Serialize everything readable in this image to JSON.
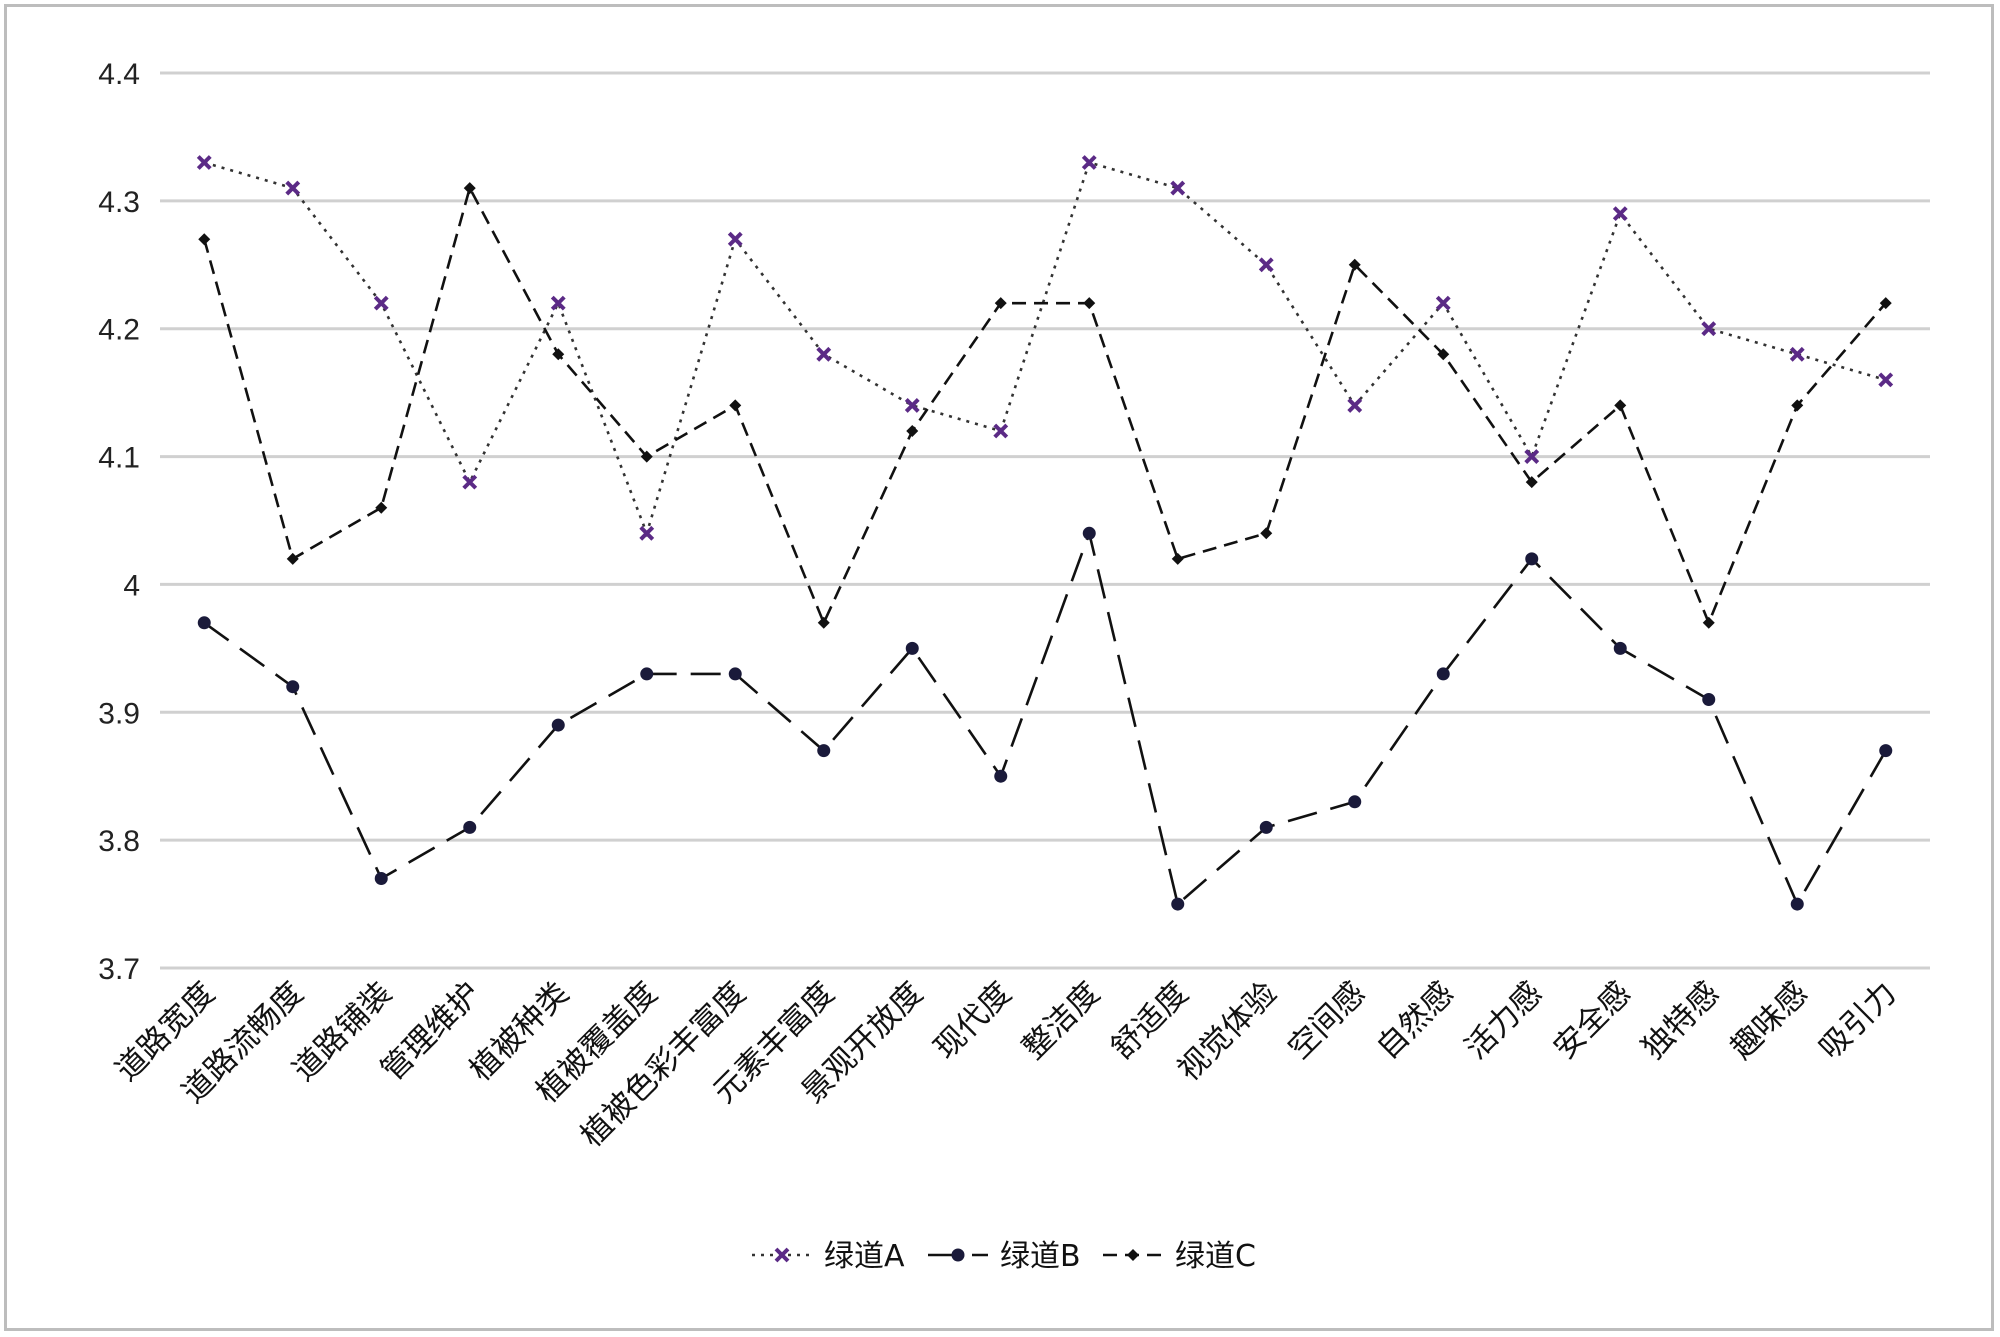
{
  "chart_data": {
    "type": "line",
    "title": "",
    "xlabel": "",
    "ylabel": "",
    "ylim": [
      3.7,
      4.4
    ],
    "yticks": [
      "3.7",
      "3.8",
      "3.9",
      "4",
      "4.1",
      "4.2",
      "4.3",
      "4.4"
    ],
    "grid": true,
    "legend_position": "bottom",
    "categories": [
      "道路宽度",
      "道路流畅度",
      "道路铺装",
      "管理维护",
      "植被种类",
      "植被覆盖度",
      "植被色彩丰富度",
      "元素丰富度",
      "景观开放度",
      "现代度",
      "整洁度",
      "舒适度",
      "视觉体验",
      "空间感",
      "自然感",
      "活力感",
      "安全感",
      "独特感",
      "趣味感",
      "吸引力"
    ],
    "series": [
      {
        "name": "绿道A",
        "line_style": "dotted",
        "marker": "cross",
        "marker_color": "#5b2a86",
        "color": "#333333",
        "values": [
          4.33,
          4.31,
          4.22,
          4.08,
          4.22,
          4.04,
          4.27,
          4.18,
          4.14,
          4.12,
          4.33,
          4.31,
          4.25,
          4.14,
          4.22,
          4.1,
          4.29,
          4.2,
          4.18,
          4.16
        ]
      },
      {
        "name": "绿道B",
        "line_style": "long-dash",
        "marker": "circle",
        "marker_color": "#1a1a3a",
        "color": "#111111",
        "values": [
          3.97,
          3.92,
          3.77,
          3.81,
          3.89,
          3.93,
          3.93,
          3.87,
          3.95,
          3.85,
          4.04,
          3.75,
          3.81,
          3.83,
          3.93,
          4.02,
          3.95,
          3.91,
          3.75,
          3.87
        ]
      },
      {
        "name": "绿道C",
        "line_style": "dashed",
        "marker": "diamond",
        "marker_color": "#111111",
        "color": "#111111",
        "values": [
          4.27,
          4.02,
          4.06,
          4.31,
          4.18,
          4.1,
          4.14,
          3.97,
          4.12,
          4.22,
          4.22,
          4.02,
          4.04,
          4.25,
          4.18,
          4.08,
          4.14,
          3.97,
          4.14,
          4.22
        ]
      }
    ]
  }
}
